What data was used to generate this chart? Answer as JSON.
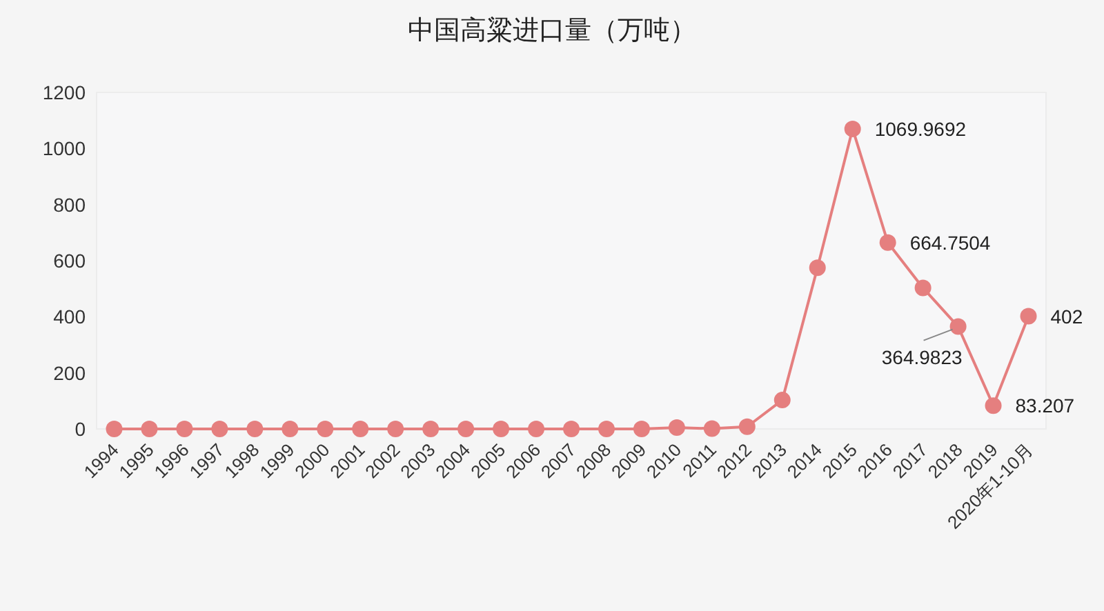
{
  "chart_data": {
    "type": "line",
    "title": "中国高粱进口量（万吨）",
    "categories": [
      "1994",
      "1995",
      "1996",
      "1997",
      "1998",
      "1999",
      "2000",
      "2001",
      "2002",
      "2003",
      "2004",
      "2005",
      "2006",
      "2007",
      "2008",
      "2009",
      "2010",
      "2011",
      "2012",
      "2013",
      "2014",
      "2015",
      "2016",
      "2017",
      "2018",
      "2019",
      "2020年1-10月"
    ],
    "series": [
      {
        "color": "#e57f7f",
        "values": [
          0,
          0,
          0,
          0,
          0,
          0,
          0,
          0,
          0,
          0,
          0,
          0,
          0,
          0,
          0,
          0,
          5,
          1,
          8,
          103,
          575,
          1069.9692,
          664.7504,
          503,
          364.9823,
          83.207,
          402
        ],
        "value_labels": [
          null,
          null,
          null,
          null,
          null,
          null,
          null,
          null,
          null,
          null,
          null,
          null,
          null,
          null,
          null,
          null,
          null,
          null,
          null,
          null,
          null,
          "1069.9692",
          "664.7504",
          null,
          "364.9823",
          "83.207",
          "402"
        ]
      }
    ],
    "ylim": [
      0,
      1200
    ],
    "yticks": [
      0,
      200,
      400,
      600,
      800,
      1000,
      1200
    ],
    "marker": "circle",
    "line_style": "solid",
    "grid": false
  }
}
